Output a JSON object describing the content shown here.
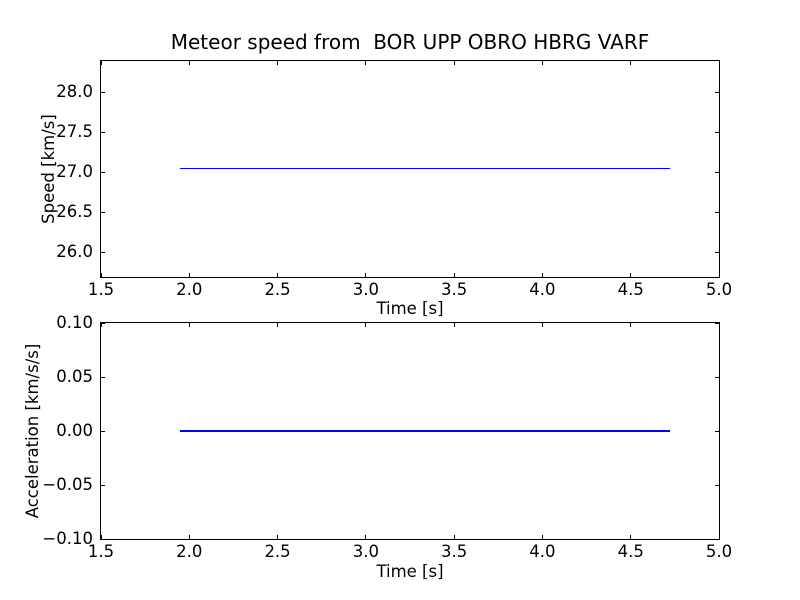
{
  "figure": {
    "background_color": "#ffffff",
    "frame_color": "#000000",
    "text_color": "#000000"
  },
  "chart_data": [
    {
      "type": "line",
      "title": "Meteor speed from  BOR UPP OBRO HBRG VARF",
      "xlabel": "Time [s]",
      "ylabel": "Speed [km/s]",
      "xlim": [
        1.5,
        5.0
      ],
      "ylim": [
        25.69,
        28.4
      ],
      "grid": false,
      "legend": null,
      "xticks": {
        "values": [
          1.5,
          2.0,
          2.5,
          3.0,
          3.5,
          4.0,
          4.5,
          5.0
        ],
        "labels": [
          "1.5",
          "2.0",
          "2.5",
          "3.0",
          "3.5",
          "4.0",
          "4.5",
          "5.0"
        ]
      },
      "yticks": {
        "values": [
          26.0,
          26.5,
          27.0,
          27.5,
          28.0
        ],
        "labels": [
          "26.0",
          "26.5",
          "27.0",
          "27.5",
          "28.0"
        ]
      },
      "series": [
        {
          "name": "speed",
          "color": "#0000ff",
          "x": [
            1.95,
            4.72
          ],
          "y": [
            27.05,
            27.05
          ]
        }
      ]
    },
    {
      "type": "line",
      "title": "",
      "xlabel": "Time [s]",
      "ylabel": "Acceleration [km/s/s]",
      "xlim": [
        1.5,
        5.0
      ],
      "ylim": [
        -0.1,
        0.1
      ],
      "grid": false,
      "legend": null,
      "xticks": {
        "values": [
          1.5,
          2.0,
          2.5,
          3.0,
          3.5,
          4.0,
          4.5,
          5.0
        ],
        "labels": [
          "1.5",
          "2.0",
          "2.5",
          "3.0",
          "3.5",
          "4.0",
          "4.5",
          "5.0"
        ]
      },
      "yticks": {
        "values": [
          -0.1,
          -0.05,
          0.0,
          0.05,
          0.1
        ],
        "labels": [
          "−0.10",
          "−0.05",
          "0.00",
          "0.05",
          "0.10"
        ]
      },
      "series": [
        {
          "name": "acceleration",
          "color": "#0000ff",
          "x": [
            1.95,
            4.72
          ],
          "y": [
            0.0,
            0.0
          ]
        }
      ]
    }
  ]
}
